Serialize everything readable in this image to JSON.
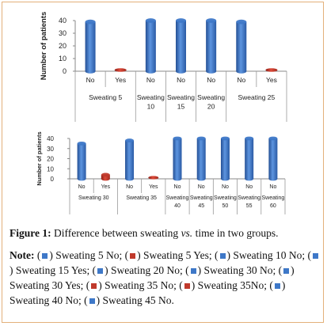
{
  "colors": {
    "no": "#3e78c8",
    "yes": "#c0392b",
    "frame": "#e3b07a"
  },
  "chart_data": [
    {
      "type": "bar",
      "ylabel": "Number of patients",
      "ylim": [
        0,
        40
      ],
      "yticks": [
        "0",
        "10",
        "20",
        "30",
        "40"
      ],
      "categories": [
        "No",
        "Yes",
        "No",
        "No",
        "No",
        "No",
        "Yes"
      ],
      "values": [
        39,
        1,
        40,
        40,
        40,
        39,
        1
      ],
      "bar_colors": [
        "no",
        "yes",
        "no",
        "no",
        "no",
        "no",
        "yes"
      ],
      "groups": [
        {
          "label": "Sweating 5",
          "span": [
            0,
            1
          ]
        },
        {
          "label": "Sweating 10",
          "span": [
            2,
            2
          ]
        },
        {
          "label": "Sweating 15",
          "span": [
            3,
            3
          ]
        },
        {
          "label": "Sweating 20",
          "span": [
            4,
            4
          ]
        },
        {
          "label": "Sweating 25",
          "span": [
            5,
            6
          ]
        }
      ]
    },
    {
      "type": "bar",
      "ylabel": "Number of patients",
      "ylim": [
        0,
        40
      ],
      "yticks": [
        "0",
        "10",
        "20",
        "30",
        "40"
      ],
      "categories": [
        "No",
        "Yes",
        "No",
        "Yes",
        "No",
        "No",
        "No",
        "No",
        "No"
      ],
      "values": [
        35,
        4,
        38,
        1,
        40,
        40,
        40,
        40,
        40
      ],
      "bar_colors": [
        "no",
        "yes",
        "no",
        "yes",
        "no",
        "no",
        "no",
        "no",
        "no"
      ],
      "groups": [
        {
          "label": "Sweating 30",
          "span": [
            0,
            1
          ]
        },
        {
          "label": "Sweating 35",
          "span": [
            2,
            3
          ]
        },
        {
          "label": "Sweating 40",
          "span": [
            4,
            4
          ]
        },
        {
          "label": "Sweating 45",
          "span": [
            5,
            5
          ]
        },
        {
          "label": "Sweating 50",
          "span": [
            6,
            6
          ]
        },
        {
          "label": "Sweating 55",
          "span": [
            7,
            7
          ]
        },
        {
          "label": "Sweating 60",
          "span": [
            8,
            8
          ]
        }
      ]
    }
  ],
  "caption": {
    "label": "Figure 1:",
    "text_before": " Difference between sweating ",
    "text_em": "vs.",
    "text_after": " time in two groups."
  },
  "note": {
    "label": "Note:",
    "items": [
      {
        "text": "Sweating 5 No;",
        "color": "no"
      },
      {
        "text": "Sweating 5 Yes;",
        "color": "yes"
      },
      {
        "text": "Sweating 10 No;",
        "color": "no"
      },
      {
        "text": "Sweating 15 Yes;",
        "color": "no"
      },
      {
        "text": "Sweating 20 No;",
        "color": "no"
      },
      {
        "text": "Sweating 30 No;",
        "color": "no"
      },
      {
        "text": "Sweating 30 Yes;",
        "color": "no"
      },
      {
        "text": "Sweating 35 No;",
        "color": "yes"
      },
      {
        "text": "Sweating 35No;",
        "color": "yes"
      },
      {
        "text": "Sweating 40 No;",
        "color": "no"
      },
      {
        "text": "Sweating 45 No.",
        "color": "no"
      }
    ]
  }
}
